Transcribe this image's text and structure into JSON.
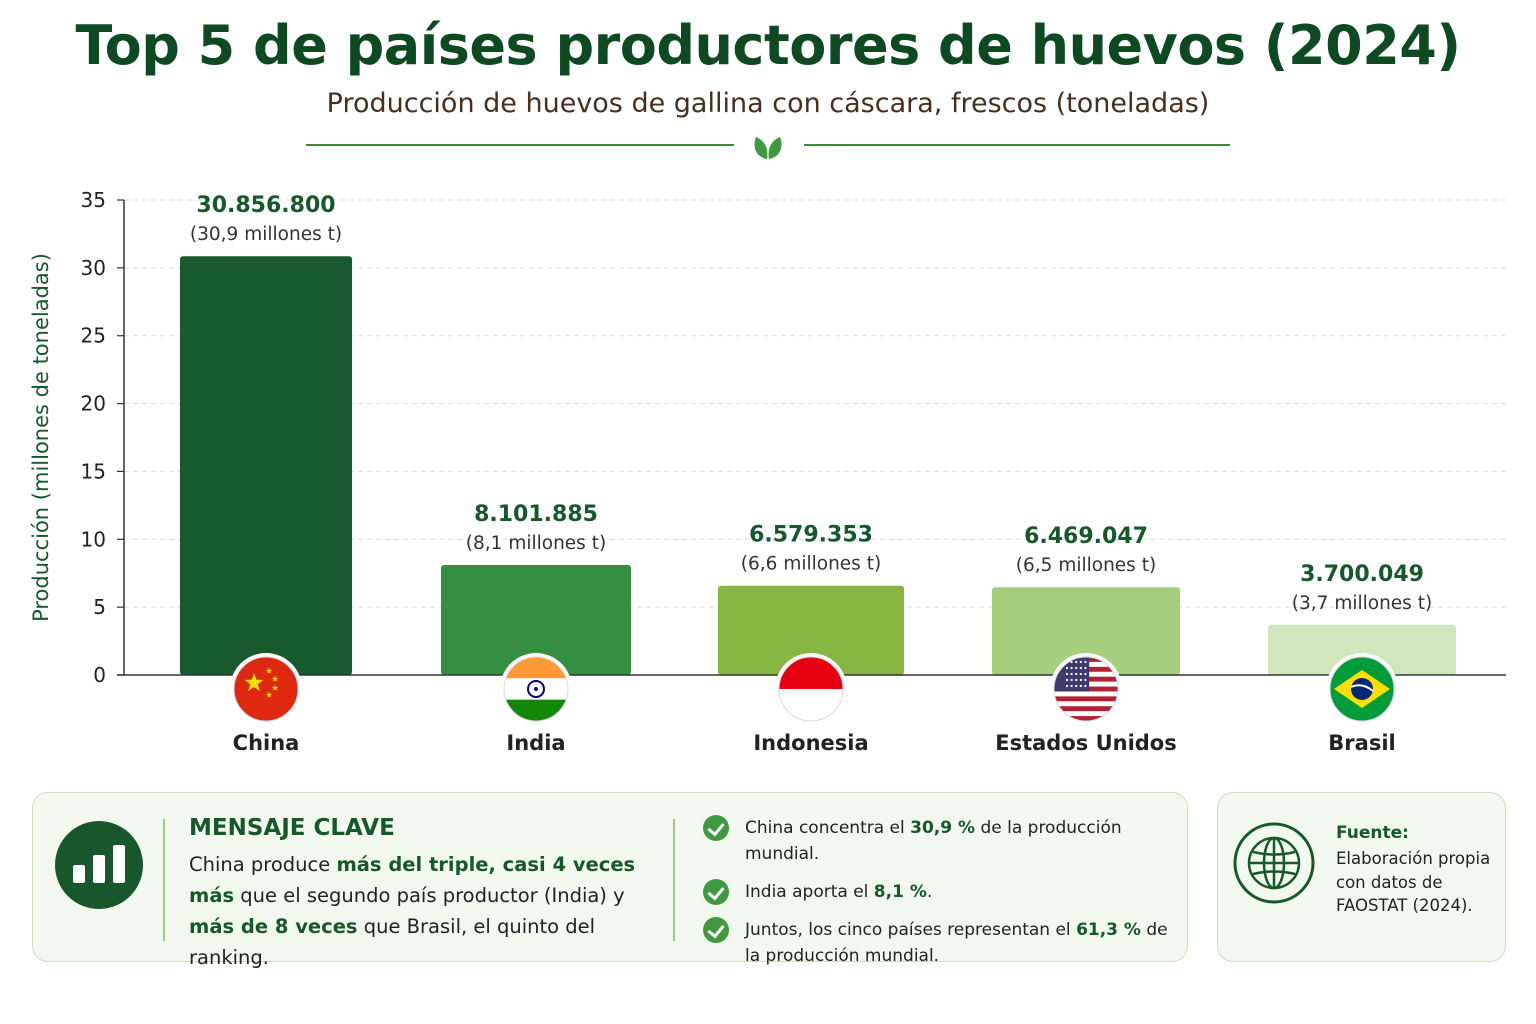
{
  "header": {
    "title": "Top 5 de países productores de huevos (2024)",
    "subtitle": "Producción de huevos de gallina con cáscara, frescos (toneladas)"
  },
  "chart_data": {
    "type": "bar",
    "ylabel": "Producción (millones de toneladas)",
    "ylim": [
      0,
      35
    ],
    "yticks": [
      0,
      5,
      10,
      15,
      20,
      25,
      30,
      35
    ],
    "grid": true,
    "categories": [
      "China",
      "India",
      "Indonesia",
      "Estados Unidos",
      "Brasil"
    ],
    "values": [
      30.8568,
      8.101885,
      6.579353,
      6.469047,
      3.700049
    ],
    "value_labels": [
      "30.856.800",
      "8.101.885",
      "6.579.353",
      "6.469.047",
      "3.700.049"
    ],
    "sub_labels": [
      "(30,9 millones t)",
      "(8,1 millones t)",
      "(6,6 millones t)",
      "(6,5 millones t)",
      "(3,7 millones t)"
    ],
    "colors": [
      "#185a2e",
      "#358e41",
      "#86b542",
      "#a5cf7c",
      "#d2e6bd"
    ],
    "flags": [
      "china-flag",
      "india-flag",
      "indonesia-flag",
      "usa-flag",
      "brazil-flag"
    ]
  },
  "key_message": {
    "title": "MENSAJE CLAVE",
    "text_1": "China produce ",
    "bold_1": "más del triple, casi 4 veces más",
    "text_2": " que el segundo país productor (India) y ",
    "bold_2": "más de 8 veces",
    "text_3": " que Brasil, el quinto del ranking.",
    "bullets": [
      {
        "pre": "China concentra el ",
        "bold": "30,9 %",
        "post": " de la producción mundial."
      },
      {
        "pre": "India aporta el ",
        "bold": "8,1 %",
        "post": "."
      },
      {
        "pre": "Juntos, los cinco países representan el ",
        "bold": "61,3 %",
        "post": " de la producción mundial."
      }
    ]
  },
  "source": {
    "label": "Fuente:",
    "text": "Elaboración propia con datos de FAOSTAT (2024)."
  },
  "colors": {
    "title": "#0d4a22",
    "subtitle": "#4a2e1c",
    "accent": "#15592a"
  }
}
